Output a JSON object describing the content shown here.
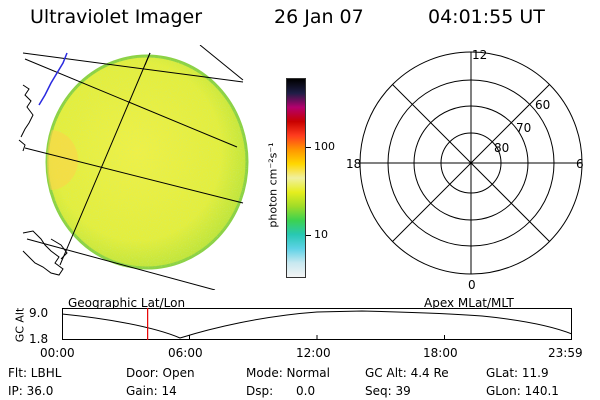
{
  "header": {
    "title": "Ultraviolet Imager",
    "date": "26 Jan 07",
    "time": "04:01:55 UT"
  },
  "colorbar": {
    "unit_label": "photon cm⁻²s⁻¹",
    "tick_high": "100",
    "tick_low": "10",
    "stops": [
      "#f4f4f4",
      "#c8e8f0",
      "#5fd2e6",
      "#28c8b4",
      "#3cd250",
      "#a0dc28",
      "#e6ee1e",
      "#f0f0a0",
      "#ffd700",
      "#ff9600",
      "#ff3c1e",
      "#c80000",
      "#b4006e",
      "#1e1e46",
      "#000000"
    ]
  },
  "image_panel": {
    "caption": "Geographic Lat/Lon",
    "disk_color": "#e6f040",
    "rim_color": "#8cd246"
  },
  "polar_panel": {
    "caption": "Apex MLat/MLT",
    "mlt_labels": {
      "top": "12",
      "bottom": "0",
      "left": "18",
      "right": "6"
    },
    "lat_labels": [
      "60",
      "70",
      "80"
    ]
  },
  "altitude_plot": {
    "ylabel": "GC Alt",
    "y_ticks": [
      "9.0",
      "1.8"
    ],
    "x_ticks": [
      "00:00",
      "06:00",
      "12:00",
      "18:00",
      "23:59"
    ],
    "marker_color": "#e60000",
    "marker_hour": 4.03
  },
  "footer": {
    "flt": "Flt: LBHL",
    "door": "Door: Open",
    "mode": "Mode: Normal",
    "gc_alt": "GC Alt: 4.4 Re",
    "glat": "GLat:  11.9",
    "ip": "IP: 36.0",
    "gain": "Gain: 14",
    "dsp": "Dsp:      0.0",
    "seq": "Seq: 39",
    "glon": "GLon: 140.1"
  }
}
